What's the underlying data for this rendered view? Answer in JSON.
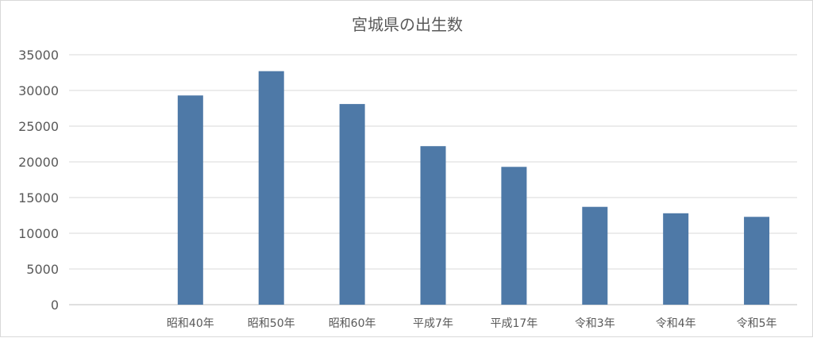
{
  "chart_data": {
    "type": "bar",
    "title": "宮城県の出生数",
    "categories": [
      "",
      "昭和40年",
      "昭和50年",
      "昭和60年",
      "平成7年",
      "平成17年",
      "令和3年",
      "令和4年",
      "令和5年"
    ],
    "values": [
      null,
      29300,
      32700,
      28100,
      22200,
      19300,
      13700,
      12800,
      12300
    ],
    "ylim": [
      0,
      35000
    ],
    "yticks": [
      0,
      5000,
      10000,
      15000,
      20000,
      25000,
      30000,
      35000
    ],
    "grid": true,
    "xlabel": "",
    "ylabel": "",
    "bar_color": "#4e79a7"
  }
}
